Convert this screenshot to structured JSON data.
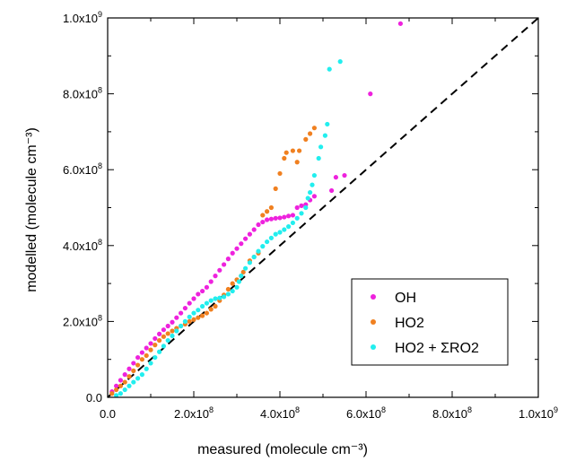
{
  "chart_data": {
    "type": "scatter",
    "title": "",
    "xlabel": "measured (molecule cm⁻³)",
    "ylabel": "modelled (molecule cm⁻³)",
    "xlim": [
      0,
      1000000000.0
    ],
    "ylim": [
      0,
      1000000000.0
    ],
    "x_ticks": [
      0,
      200000000.0,
      400000000.0,
      600000000.0,
      800000000.0,
      1000000000.0
    ],
    "x_tick_labels": [
      "0.0",
      "2.0x10^8",
      "4.0x10^8",
      "6.0x10^8",
      "8.0x10^8",
      "1.0x10^9"
    ],
    "y_ticks": [
      0,
      200000000.0,
      400000000.0,
      600000000.0,
      800000000.0,
      1000000000.0
    ],
    "y_tick_labels": [
      "0.0",
      "2.0x10^8",
      "4.0x10^8",
      "6.0x10^8",
      "8.0x10^8",
      "1.0x10^9"
    ],
    "grid": false,
    "legend_position": "lower-right",
    "reference_line": {
      "style": "dashed",
      "color": "#000000",
      "x": [
        0,
        1000000000.0
      ],
      "y": [
        0,
        1000000000.0
      ]
    },
    "series": [
      {
        "name": "OH",
        "color": "#ee22dd",
        "points": [
          [
            10000000.0,
            15000000.0
          ],
          [
            20000000.0,
            30000000.0
          ],
          [
            30000000.0,
            45000000.0
          ],
          [
            40000000.0,
            60000000.0
          ],
          [
            50000000.0,
            75000000.0
          ],
          [
            60000000.0,
            90000000.0
          ],
          [
            70000000.0,
            105000000.0
          ],
          [
            80000000.0,
            118000000.0
          ],
          [
            90000000.0,
            130000000.0
          ],
          [
            100000000.0,
            142000000.0
          ],
          [
            110000000.0,
            155000000.0
          ],
          [
            120000000.0,
            167000000.0
          ],
          [
            130000000.0,
            178000000.0
          ],
          [
            140000000.0,
            188000000.0
          ],
          [
            150000000.0,
            198000000.0
          ],
          [
            160000000.0,
            210000000.0
          ],
          [
            170000000.0,
            222000000.0
          ],
          [
            180000000.0,
            235000000.0
          ],
          [
            190000000.0,
            248000000.0
          ],
          [
            200000000.0,
            260000000.0
          ],
          [
            210000000.0,
            272000000.0
          ],
          [
            220000000.0,
            280000000.0
          ],
          [
            230000000.0,
            290000000.0
          ],
          [
            240000000.0,
            305000000.0
          ],
          [
            250000000.0,
            320000000.0
          ],
          [
            260000000.0,
            335000000.0
          ],
          [
            270000000.0,
            350000000.0
          ],
          [
            280000000.0,
            365000000.0
          ],
          [
            290000000.0,
            380000000.0
          ],
          [
            300000000.0,
            392000000.0
          ],
          [
            310000000.0,
            405000000.0
          ],
          [
            320000000.0,
            418000000.0
          ],
          [
            330000000.0,
            430000000.0
          ],
          [
            340000000.0,
            442000000.0
          ],
          [
            350000000.0,
            455000000.0
          ],
          [
            360000000.0,
            462000000.0
          ],
          [
            370000000.0,
            468000000.0
          ],
          [
            380000000.0,
            470000000.0
          ],
          [
            390000000.0,
            472000000.0
          ],
          [
            400000000.0,
            473000000.0
          ],
          [
            410000000.0,
            475000000.0
          ],
          [
            420000000.0,
            478000000.0
          ],
          [
            430000000.0,
            480000000.0
          ],
          [
            440000000.0,
            500000000.0
          ],
          [
            450000000.0,
            505000000.0
          ],
          [
            460000000.0,
            508000000.0
          ],
          [
            470000000.0,
            520000000.0
          ],
          [
            480000000.0,
            530000000.0
          ],
          [
            520000000.0,
            545000000.0
          ],
          [
            530000000.0,
            580000000.0
          ],
          [
            550000000.0,
            585000000.0
          ],
          [
            610000000.0,
            800000000.0
          ],
          [
            680000000.0,
            985000000.0
          ]
        ]
      },
      {
        "name": "HO2",
        "color": "#f08020",
        "points": [
          [
            10000000.0,
            10000000.0
          ],
          [
            20000000.0,
            20000000.0
          ],
          [
            30000000.0,
            30000000.0
          ],
          [
            40000000.0,
            40000000.0
          ],
          [
            50000000.0,
            55000000.0
          ],
          [
            60000000.0,
            70000000.0
          ],
          [
            70000000.0,
            85000000.0
          ],
          [
            80000000.0,
            100000000.0
          ],
          [
            90000000.0,
            110000000.0
          ],
          [
            100000000.0,
            125000000.0
          ],
          [
            110000000.0,
            138000000.0
          ],
          [
            120000000.0,
            150000000.0
          ],
          [
            130000000.0,
            160000000.0
          ],
          [
            140000000.0,
            168000000.0
          ],
          [
            150000000.0,
            175000000.0
          ],
          [
            160000000.0,
            182000000.0
          ],
          [
            170000000.0,
            188000000.0
          ],
          [
            180000000.0,
            193000000.0
          ],
          [
            190000000.0,
            200000000.0
          ],
          [
            200000000.0,
            205000000.0
          ],
          [
            210000000.0,
            210000000.0
          ],
          [
            220000000.0,
            215000000.0
          ],
          [
            230000000.0,
            222000000.0
          ],
          [
            240000000.0,
            232000000.0
          ],
          [
            250000000.0,
            240000000.0
          ],
          [
            260000000.0,
            255000000.0
          ],
          [
            270000000.0,
            270000000.0
          ],
          [
            280000000.0,
            285000000.0
          ],
          [
            290000000.0,
            300000000.0
          ],
          [
            300000000.0,
            310000000.0
          ],
          [
            310000000.0,
            320000000.0
          ],
          [
            315000000.0,
            330000000.0
          ],
          [
            330000000.0,
            360000000.0
          ],
          [
            340000000.0,
            370000000.0
          ],
          [
            350000000.0,
            380000000.0
          ],
          [
            360000000.0,
            480000000.0
          ],
          [
            370000000.0,
            490000000.0
          ],
          [
            380000000.0,
            500000000.0
          ],
          [
            390000000.0,
            550000000.0
          ],
          [
            400000000.0,
            590000000.0
          ],
          [
            410000000.0,
            630000000.0
          ],
          [
            415000000.0,
            645000000.0
          ],
          [
            430000000.0,
            650000000.0
          ],
          [
            440000000.0,
            620000000.0
          ],
          [
            445000000.0,
            650000000.0
          ],
          [
            460000000.0,
            680000000.0
          ],
          [
            470000000.0,
            695000000.0
          ],
          [
            480000000.0,
            710000000.0
          ]
        ]
      },
      {
        "name": "HO2 + ΣRO2",
        "color": "#22eeee",
        "points": [
          [
            20000000.0,
            5000000.0
          ],
          [
            30000000.0,
            10000000.0
          ],
          [
            40000000.0,
            20000000.0
          ],
          [
            50000000.0,
            30000000.0
          ],
          [
            60000000.0,
            40000000.0
          ],
          [
            70000000.0,
            50000000.0
          ],
          [
            80000000.0,
            60000000.0
          ],
          [
            90000000.0,
            75000000.0
          ],
          [
            100000000.0,
            90000000.0
          ],
          [
            110000000.0,
            105000000.0
          ],
          [
            120000000.0,
            120000000.0
          ],
          [
            130000000.0,
            135000000.0
          ],
          [
            140000000.0,
            150000000.0
          ],
          [
            150000000.0,
            162000000.0
          ],
          [
            160000000.0,
            175000000.0
          ],
          [
            170000000.0,
            188000000.0
          ],
          [
            180000000.0,
            200000000.0
          ],
          [
            190000000.0,
            212000000.0
          ],
          [
            200000000.0,
            222000000.0
          ],
          [
            210000000.0,
            230000000.0
          ],
          [
            220000000.0,
            240000000.0
          ],
          [
            230000000.0,
            248000000.0
          ],
          [
            240000000.0,
            255000000.0
          ],
          [
            250000000.0,
            260000000.0
          ],
          [
            260000000.0,
            262000000.0
          ],
          [
            270000000.0,
            265000000.0
          ],
          [
            280000000.0,
            272000000.0
          ],
          [
            290000000.0,
            280000000.0
          ],
          [
            300000000.0,
            290000000.0
          ],
          [
            305000000.0,
            305000000.0
          ],
          [
            310000000.0,
            320000000.0
          ],
          [
            320000000.0,
            340000000.0
          ],
          [
            330000000.0,
            355000000.0
          ],
          [
            340000000.0,
            370000000.0
          ],
          [
            350000000.0,
            385000000.0
          ],
          [
            360000000.0,
            398000000.0
          ],
          [
            370000000.0,
            410000000.0
          ],
          [
            380000000.0,
            420000000.0
          ],
          [
            390000000.0,
            430000000.0
          ],
          [
            400000000.0,
            435000000.0
          ],
          [
            410000000.0,
            442000000.0
          ],
          [
            420000000.0,
            450000000.0
          ],
          [
            430000000.0,
            460000000.0
          ],
          [
            440000000.0,
            472000000.0
          ],
          [
            450000000.0,
            485000000.0
          ],
          [
            460000000.0,
            500000000.0
          ],
          [
            465000000.0,
            525000000.0
          ],
          [
            470000000.0,
            540000000.0
          ],
          [
            475000000.0,
            560000000.0
          ],
          [
            480000000.0,
            585000000.0
          ],
          [
            490000000.0,
            630000000.0
          ],
          [
            495000000.0,
            660000000.0
          ],
          [
            505000000.0,
            690000000.0
          ],
          [
            510000000.0,
            720000000.0
          ],
          [
            515000000.0,
            865000000.0
          ],
          [
            540000000.0,
            885000000.0
          ]
        ]
      }
    ]
  }
}
